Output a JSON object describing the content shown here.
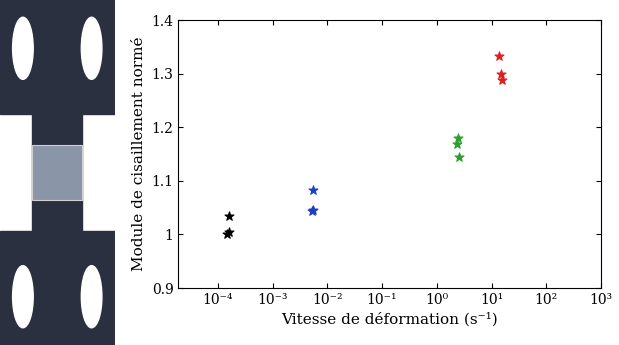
{
  "chart_data": {
    "type": "scatter",
    "x_label": "Vitesse de déformation (s⁻¹)",
    "y_label": "Module de cisaillement normé",
    "log": "x",
    "grid": false,
    "marker": "*",
    "xlim": [
      1.9e-05,
      1000
    ],
    "xticks": [
      {
        "value": 0.0001,
        "label": "10⁻⁴"
      },
      {
        "value": 0.001,
        "label": "10⁻³"
      },
      {
        "value": 0.01,
        "label": "10⁻²"
      },
      {
        "value": 0.1,
        "label": "10⁻¹"
      },
      {
        "value": 1,
        "label": "10⁰"
      },
      {
        "value": 10,
        "label": "10¹"
      },
      {
        "value": 100,
        "label": "10²"
      },
      {
        "value": 1000,
        "label": "10³"
      }
    ],
    "ylim": [
      0.9,
      1.4
    ],
    "yticks": [
      0.9,
      1,
      1.1,
      1.2,
      1.3,
      1.4
    ],
    "series": [
      {
        "color": "#000000",
        "x": [
          0.00016,
          0.00015,
          0.00016
        ],
        "values": [
          1.035,
          1.0,
          1.005
        ]
      },
      {
        "color": "#1f3fbf",
        "x": [
          0.0054,
          0.0053,
          0.0054
        ],
        "values": [
          1.083,
          1.043,
          1.045
        ]
      },
      {
        "color": "#2ca02c",
        "x": [
          2.4,
          2.3,
          2.5
        ],
        "values": [
          1.18,
          1.168,
          1.145
        ]
      },
      {
        "color": "#e02020",
        "x": [
          13.5,
          15,
          15.5
        ],
        "values": [
          1.333,
          1.3,
          1.288
        ]
      }
    ]
  }
}
